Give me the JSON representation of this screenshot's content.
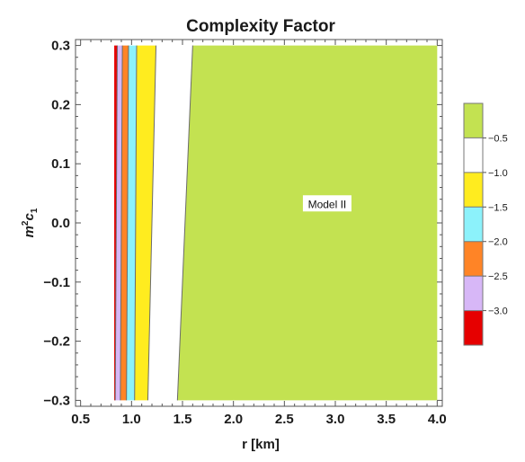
{
  "chart_data": {
    "type": "contour",
    "title": "Complexity Factor",
    "xlabel": "r [km]",
    "ylabel_main": "m",
    "ylabel_sup": "2",
    "ylabel_sub_base": "c",
    "ylabel_sub": "1",
    "xlim": [
      0.45,
      4.05
    ],
    "ylim": [
      -0.31,
      0.31
    ],
    "plot_region": {
      "x": [
        0.83,
        4.0
      ],
      "y": [
        -0.3,
        0.3
      ]
    },
    "x_ticks": [
      0.5,
      1.0,
      1.5,
      2.0,
      2.5,
      3.0,
      3.5,
      4.0
    ],
    "x_tick_labels": [
      "0.5",
      "1.0",
      "1.5",
      "2.0",
      "2.5",
      "3.0",
      "3.5",
      "4.0"
    ],
    "y_ticks": [
      -0.3,
      -0.2,
      -0.1,
      0.0,
      0.1,
      0.2,
      0.3
    ],
    "y_tick_labels": [
      "−0.3",
      "−0.2",
      "−0.1",
      "0.0",
      "0.1",
      "0.2",
      "0.3"
    ],
    "contour_boundaries": [
      {
        "level": -3.0,
        "r_at_ymin": 0.84,
        "r_at_ymax": 0.86
      },
      {
        "level": -2.5,
        "r_at_ymin": 0.89,
        "r_at_ymax": 0.91
      },
      {
        "level": -2.0,
        "r_at_ymin": 0.95,
        "r_at_ymax": 0.97
      },
      {
        "level": -1.5,
        "r_at_ymin": 1.03,
        "r_at_ymax": 1.05
      },
      {
        "level": -1.0,
        "r_at_ymin": 1.16,
        "r_at_ymax": 1.24
      },
      {
        "level": -0.5,
        "r_at_ymin": 1.45,
        "r_at_ymax": 1.6
      }
    ],
    "bands": [
      {
        "range": [
          -3.5,
          -3.0
        ],
        "color": "#e60000"
      },
      {
        "range": [
          -3.0,
          -2.5
        ],
        "color": "#d7b7f7"
      },
      {
        "range": [
          -2.5,
          -2.0
        ],
        "color": "#ff8426"
      },
      {
        "range": [
          -2.0,
          -1.5
        ],
        "color": "#8cf2fb"
      },
      {
        "range": [
          -1.5,
          -1.0
        ],
        "color": "#ffec1f"
      },
      {
        "range": [
          -1.0,
          -0.5
        ],
        "color": "#ffffff"
      },
      {
        "range": [
          -0.5,
          0.0
        ],
        "color": "#c3e251"
      }
    ],
    "legend_ticks": [
      -3.0,
      -2.5,
      -2.0,
      -1.5,
      -1.0,
      -0.5
    ],
    "legend_tick_labels": [
      "−3.0",
      "−2.5",
      "−2.0",
      "−1.5",
      "−1.0",
      "−0.5"
    ],
    "legend_placement": "right",
    "annotation": {
      "text": "Model II",
      "x": 2.92,
      "y": 0.03
    }
  }
}
